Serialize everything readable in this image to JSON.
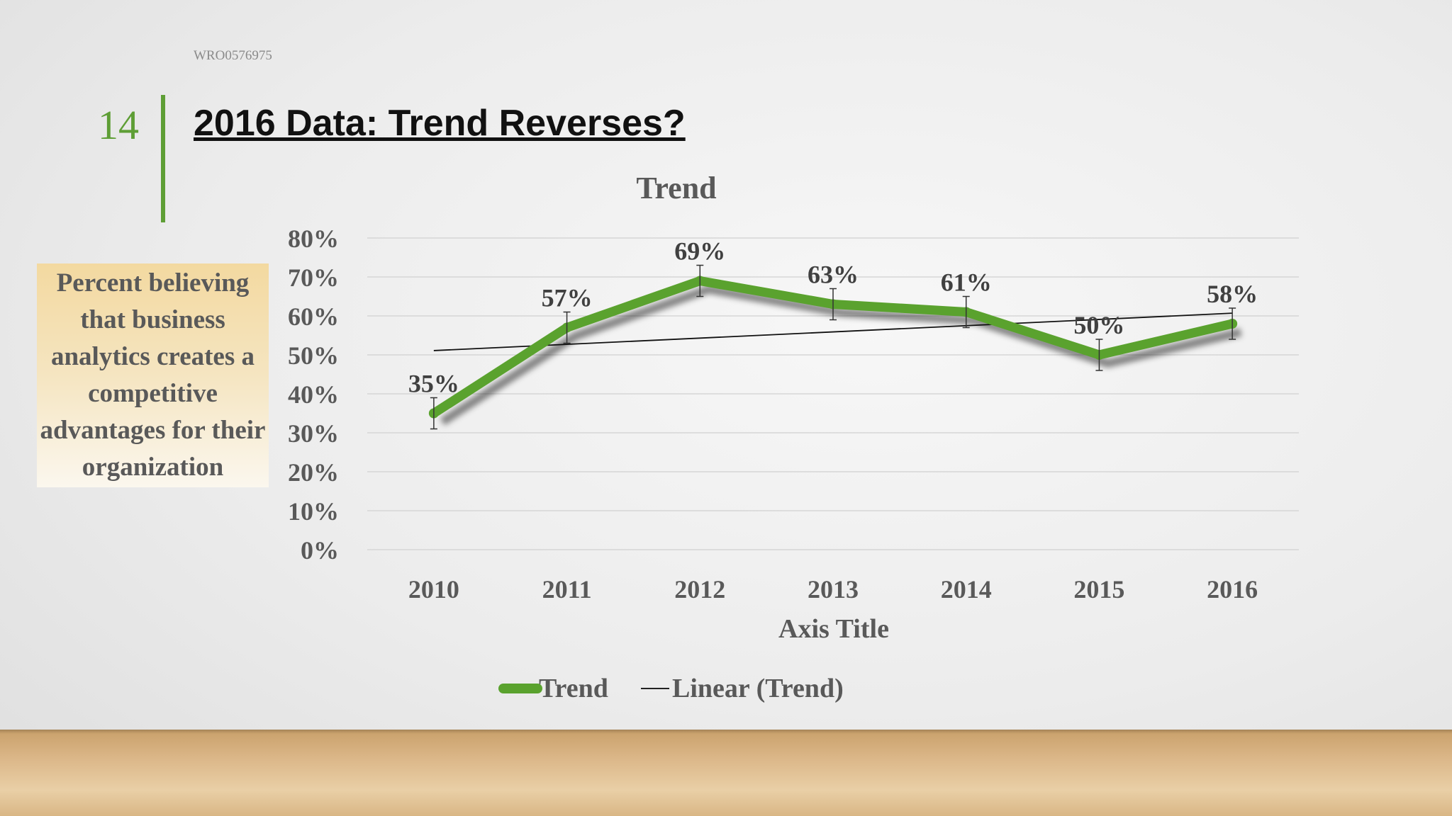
{
  "slide": {
    "doc_id": "WRO0576975",
    "number": "14",
    "title": "2016 Data: Trend Reverses?",
    "callout": "Percent believing that business analytics creates a competitive advantages for their organization"
  },
  "colors": {
    "accent": "#5e9e35",
    "trend_line": "#5aa22e",
    "linear_line": "#111111",
    "text": "#595959",
    "data_label": "#404040"
  },
  "chart_data": {
    "type": "line",
    "title": "Trend",
    "xlabel": "Axis Title",
    "ylabel": "",
    "categories": [
      "2010",
      "2011",
      "2012",
      "2013",
      "2014",
      "2015",
      "2016"
    ],
    "yticks": [
      "0%",
      "10%",
      "20%",
      "30%",
      "40%",
      "50%",
      "60%",
      "70%",
      "80%"
    ],
    "ylim": [
      0,
      80
    ],
    "grid": true,
    "legend_position": "bottom",
    "series": [
      {
        "name": "Trend",
        "values": [
          35,
          57,
          69,
          63,
          61,
          50,
          58
        ],
        "labels": [
          "35%",
          "57%",
          "69%",
          "63%",
          "61%",
          "50%",
          "58%"
        ],
        "error_bars": true
      },
      {
        "name": "Linear (Trend)",
        "type": "trendline",
        "values": [
          51.1,
          52.7,
          54.3,
          55.9,
          57.5,
          59.1,
          60.7
        ]
      }
    ]
  }
}
